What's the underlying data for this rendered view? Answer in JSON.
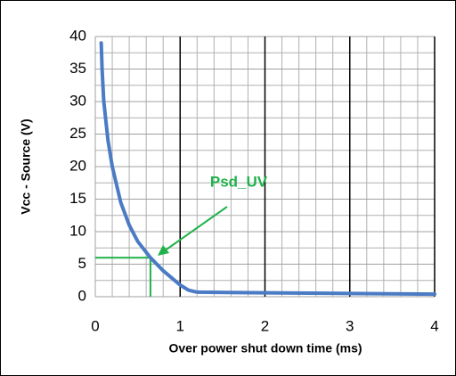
{
  "chart_data": {
    "type": "line",
    "x_label": "Over power shut down time (ms)",
    "y_label": "Vcc - Source (V)",
    "xlim": [
      0,
      4
    ],
    "ylim": [
      0,
      40
    ],
    "xticks": [
      0,
      1,
      2,
      3,
      4
    ],
    "yticks": [
      0,
      5,
      10,
      15,
      20,
      25,
      30,
      35,
      40
    ],
    "x_minor_ticks": [
      0.2,
      0.4,
      0.6,
      0.8,
      1.2,
      1.4,
      1.6,
      1.8,
      2.2,
      2.4,
      2.6,
      2.8,
      3.2,
      3.4,
      3.6,
      3.8
    ],
    "y_minor_ticks": [
      2.5,
      7.5,
      12.5,
      17.5,
      22.5,
      27.5,
      32.5,
      37.5
    ],
    "grid": true,
    "series": [
      {
        "color": "#4a7bc4",
        "x": [
          0.07,
          0.08,
          0.1,
          0.15,
          0.2,
          0.3,
          0.4,
          0.5,
          0.65,
          0.8,
          1.0,
          1.1,
          1.2,
          2,
          3,
          4
        ],
        "values": [
          39,
          35,
          30,
          24,
          20,
          14.5,
          11,
          8.5,
          6,
          4,
          1.8,
          1,
          0.7,
          0.6,
          0.5,
          0.4
        ]
      }
    ],
    "annotation": {
      "text": "Psd_UV",
      "color": "#1fb24a",
      "x": 0.65,
      "y": 6
    }
  }
}
